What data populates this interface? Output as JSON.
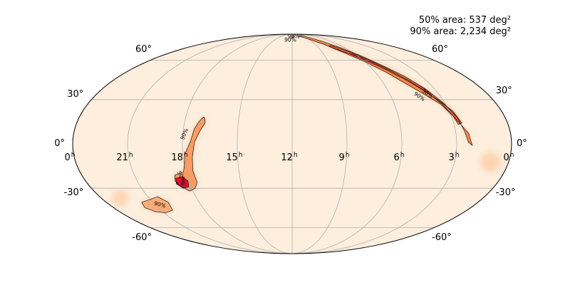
{
  "map": {
    "projection": "mollweide",
    "colormap": "cylon-orange-red",
    "colors": {
      "background": "#ffffff",
      "sky": "#fdeedd",
      "grid": "#b0b0b0",
      "outline": "#000000",
      "contour": "#111111",
      "light": "#fccfa8",
      "mid": "#fb8a4a",
      "strong": "#f4552a",
      "peak": "#d7142a",
      "core": "#8c0a2a"
    },
    "annotations": {
      "area_50": "50% area: 537 deg²",
      "area_90": "90% area: 2,234 deg²"
    },
    "ra_labels": [
      {
        "ra_h": 24,
        "text": "0",
        "sup": "h"
      },
      {
        "ra_h": 21,
        "text": "21",
        "sup": "h"
      },
      {
        "ra_h": 18,
        "text": "18",
        "sup": "h"
      },
      {
        "ra_h": 15,
        "text": "15",
        "sup": "h"
      },
      {
        "ra_h": 12,
        "text": "12",
        "sup": "h"
      },
      {
        "ra_h": 9,
        "text": "9",
        "sup": "h"
      },
      {
        "ra_h": 6,
        "text": "6",
        "sup": "h"
      },
      {
        "ra_h": 3,
        "text": "3",
        "sup": "h"
      },
      {
        "ra_h": 0,
        "text": "0",
        "sup": "h"
      }
    ],
    "dec_labels": [
      {
        "dec": 60,
        "text": "60°"
      },
      {
        "dec": 30,
        "text": "30°"
      },
      {
        "dec": 0,
        "text": "0°"
      },
      {
        "dec": -30,
        "text": "-30°"
      },
      {
        "dec": -60,
        "text": "-60°"
      }
    ],
    "contour_labels": [
      {
        "text": "90%",
        "ra_h": 12.3,
        "dec": 80,
        "angle": 0
      },
      {
        "text": "90%",
        "ra_h": 11.6,
        "dec": 85,
        "angle": 0
      },
      {
        "text": "90%",
        "ra_h": 17.9,
        "dec": 6.5,
        "angle": -68
      },
      {
        "text": "50%",
        "ra_h": 18.35,
        "dec": -22,
        "angle": 60
      },
      {
        "text": "90%",
        "ra_h": 20.7,
        "dec": -42,
        "angle": 15
      },
      {
        "text": "50%",
        "ra_h": 3.7,
        "dec": 34,
        "angle": 35
      },
      {
        "text": "90%",
        "ra_h": 4.3,
        "dec": 32,
        "angle": 35
      }
    ],
    "regions": [
      {
        "name": "north-arc",
        "pts": [
          [
            8.55,
            87
          ],
          [
            7.4,
            79
          ],
          [
            6.4,
            71
          ],
          [
            5.6,
            63
          ],
          [
            4.9,
            55
          ],
          [
            4.2,
            47
          ],
          [
            3.6,
            38
          ],
          [
            3.1,
            28
          ],
          [
            2.7,
            18
          ],
          [
            2.5,
            8
          ],
          [
            2.35,
            1
          ],
          [
            2.15,
            -1
          ],
          [
            2.3,
            7
          ],
          [
            2.9,
            19
          ],
          [
            3.3,
            27
          ],
          [
            4.0,
            35
          ],
          [
            4.6,
            42
          ],
          [
            5.2,
            50
          ],
          [
            5.9,
            58
          ],
          [
            6.8,
            66
          ],
          [
            7.8,
            75
          ],
          [
            9.3,
            83
          ],
          [
            10.2,
            86
          ]
        ]
      },
      {
        "name": "north-band",
        "pts": [
          [
            7.2,
            74
          ],
          [
            6.2,
            67
          ],
          [
            5.5,
            60
          ],
          [
            4.8,
            52
          ],
          [
            4.2,
            44
          ],
          [
            3.6,
            35
          ],
          [
            3.2,
            27
          ],
          [
            2.9,
            19
          ],
          [
            2.75,
            13
          ],
          [
            2.55,
            14
          ],
          [
            2.8,
            22
          ],
          [
            3.3,
            30
          ],
          [
            3.8,
            37
          ],
          [
            4.4,
            45
          ],
          [
            5.0,
            52
          ],
          [
            5.7,
            59
          ],
          [
            6.5,
            66
          ],
          [
            7.6,
            73
          ]
        ]
      },
      {
        "name": "north-core",
        "pts": [
          [
            6.1,
            66
          ],
          [
            5.6,
            60
          ],
          [
            5.0,
            54
          ],
          [
            4.4,
            47
          ],
          [
            3.9,
            41
          ],
          [
            3.6,
            36
          ],
          [
            3.4,
            35
          ],
          [
            3.7,
            39
          ],
          [
            4.2,
            45
          ],
          [
            4.8,
            51
          ],
          [
            5.4,
            57
          ],
          [
            6.0,
            62
          ],
          [
            6.6,
            66
          ]
        ]
      },
      {
        "name": "north-tip",
        "pts": [
          [
            11.3,
            86
          ],
          [
            11.6,
            84
          ],
          [
            12.1,
            83
          ],
          [
            12.0,
            86
          ],
          [
            11.6,
            87
          ]
        ]
      },
      {
        "name": "south-arm",
        "pts": [
          [
            16.9,
            17
          ],
          [
            16.85,
            14
          ],
          [
            17.1,
            8
          ],
          [
            17.35,
            1
          ],
          [
            17.5,
            -9
          ],
          [
            17.6,
            -18
          ],
          [
            17.55,
            -26
          ],
          [
            17.8,
            -30
          ],
          [
            18.2,
            -32
          ],
          [
            18.55,
            -29
          ],
          [
            18.8,
            -25
          ],
          [
            18.7,
            -21
          ],
          [
            18.15,
            -19
          ],
          [
            18.0,
            -14
          ],
          [
            17.9,
            -7
          ],
          [
            17.55,
            2
          ],
          [
            17.4,
            10
          ],
          [
            17.2,
            15
          ],
          [
            17.0,
            18
          ]
        ]
      },
      {
        "name": "south-blob",
        "pts": [
          [
            18.3,
            -22
          ],
          [
            18.05,
            -25
          ],
          [
            18.15,
            -29
          ],
          [
            18.5,
            -30
          ],
          [
            18.8,
            -27
          ],
          [
            18.7,
            -23
          ]
        ]
      },
      {
        "name": "south-island",
        "pts": [
          [
            20.4,
            -36
          ],
          [
            20.0,
            -40
          ],
          [
            20.2,
            -46
          ],
          [
            20.9,
            -48
          ],
          [
            21.5,
            -47
          ],
          [
            21.9,
            -44
          ],
          [
            21.7,
            -40
          ],
          [
            21.0,
            -38
          ]
        ]
      }
    ]
  }
}
